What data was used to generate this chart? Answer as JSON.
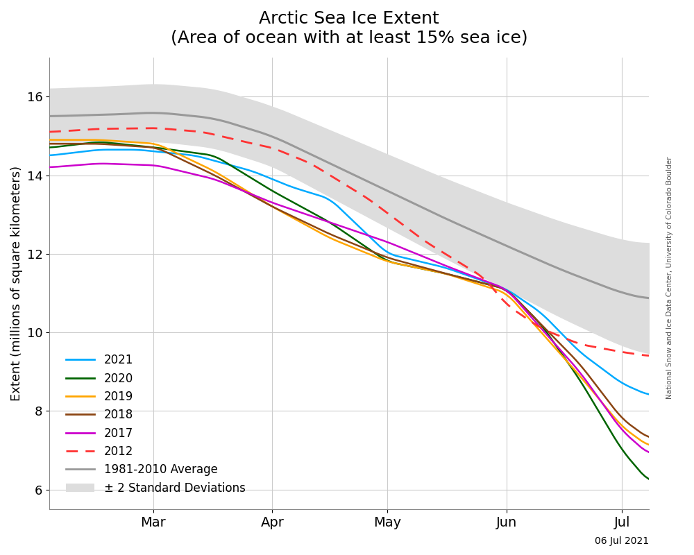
{
  "title_line1": "Arctic Sea Ice Extent",
  "title_line2": "(Area of ocean with at least 15% sea ice)",
  "ylabel": "Extent (millions of square kilometers)",
  "watermark": "National Snow and Ice Data Center, University of Colorado Boulder",
  "date_label": "06 Jul 2021",
  "ylim": [
    5.5,
    17.0
  ],
  "yticks": [
    6,
    8,
    10,
    12,
    14,
    16
  ],
  "month_ticks": [
    {
      "day": 59,
      "label": "Mar"
    },
    {
      "day": 90,
      "label": "Apr"
    },
    {
      "day": 120,
      "label": "May"
    },
    {
      "day": 151,
      "label": "Jun"
    },
    {
      "day": 181,
      "label": "Jul"
    }
  ],
  "colors": {
    "2021": "#00AAFF",
    "2020": "#006400",
    "2019": "#FFA500",
    "2018": "#8B4513",
    "2017": "#CC00CC",
    "2012": "#FF3333",
    "avg": "#999999",
    "std": "#DDDDDD"
  },
  "background_color": "#FFFFFF"
}
